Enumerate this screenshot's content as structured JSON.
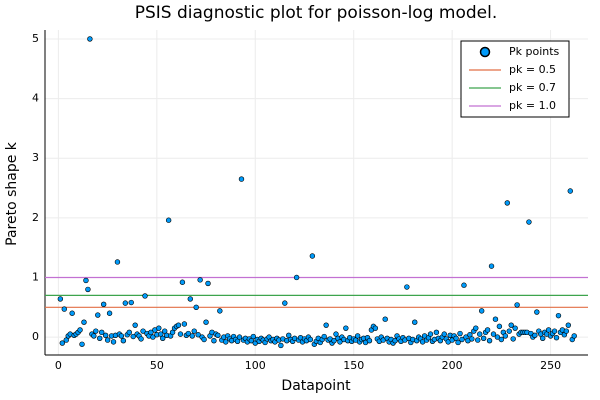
{
  "chart_data": {
    "type": "scatter",
    "title": "PSIS diagnostic plot for poisson-log model.",
    "x_label": "Datapoint",
    "y_label": "Pareto shape k",
    "xlim": [
      -6.8,
      269
    ],
    "ylim": [
      -0.3,
      5.15
    ],
    "xticks": [
      0,
      50,
      100,
      150,
      200,
      250
    ],
    "yticks": [
      0,
      1,
      2,
      3,
      4,
      5
    ],
    "grid": true,
    "legend_position": "top-right",
    "x": [
      1,
      2,
      3,
      4,
      5,
      6,
      7,
      8,
      9,
      10,
      11,
      12,
      13,
      14,
      15,
      16,
      17,
      18,
      19,
      20,
      21,
      22,
      23,
      24,
      25,
      26,
      27,
      28,
      29,
      30,
      31,
      32,
      33,
      34,
      35,
      36,
      37,
      38,
      39,
      40,
      41,
      42,
      43,
      44,
      45,
      46,
      47,
      48,
      49,
      50,
      51,
      52,
      53,
      54,
      55,
      56,
      57,
      58,
      59,
      60,
      61,
      62,
      63,
      64,
      65,
      66,
      67,
      68,
      69,
      70,
      71,
      72,
      73,
      74,
      75,
      76,
      77,
      78,
      79,
      80,
      81,
      82,
      83,
      84,
      85,
      86,
      87,
      88,
      89,
      90,
      91,
      92,
      93,
      94,
      95,
      96,
      97,
      98,
      99,
      100,
      101,
      102,
      103,
      104,
      105,
      106,
      107,
      108,
      109,
      110,
      111,
      112,
      113,
      114,
      115,
      116,
      117,
      118,
      119,
      120,
      121,
      122,
      123,
      124,
      125,
      126,
      127,
      128,
      129,
      130,
      131,
      132,
      133,
      134,
      135,
      136,
      137,
      138,
      139,
      140,
      141,
      142,
      143,
      144,
      145,
      146,
      147,
      148,
      149,
      150,
      151,
      152,
      153,
      154,
      155,
      156,
      157,
      158,
      159,
      160,
      161,
      162,
      163,
      164,
      165,
      166,
      167,
      168,
      169,
      170,
      171,
      172,
      173,
      174,
      175,
      176,
      177,
      178,
      179,
      180,
      181,
      182,
      183,
      184,
      185,
      186,
      187,
      188,
      189,
      190,
      191,
      192,
      193,
      194,
      195,
      196,
      197,
      198,
      199,
      200,
      201,
      202,
      203,
      204,
      205,
      206,
      207,
      208,
      209,
      210,
      211,
      212,
      213,
      214,
      215,
      216,
      217,
      218,
      219,
      220,
      221,
      222,
      223,
      224,
      225,
      226,
      227,
      228,
      229,
      230,
      231,
      232,
      233,
      234,
      235,
      236,
      237,
      238,
      239,
      240,
      241,
      242,
      243,
      244,
      245,
      246,
      247,
      248,
      249,
      250,
      251,
      252,
      253,
      254,
      255,
      256,
      257,
      258,
      259,
      260,
      261,
      262
    ],
    "series": [
      {
        "name": "Pk points",
        "color": "#009af9",
        "values": [
          0.64,
          -0.1,
          0.47,
          -0.05,
          0.02,
          0.05,
          0.4,
          0.03,
          0.05,
          0.08,
          0.12,
          -0.12,
          0.25,
          0.95,
          0.8,
          5.0,
          0.05,
          0.02,
          0.1,
          0.37,
          -0.02,
          0.08,
          0.55,
          0.03,
          -0.05,
          0.4,
          0.02,
          -0.08,
          0.03,
          1.26,
          0.05,
          0.02,
          -0.06,
          0.57,
          0.04,
          0.08,
          0.58,
          0.01,
          0.2,
          0.05,
          0.02,
          -0.03,
          0.1,
          0.69,
          0.06,
          0.02,
          0.08,
          0.0,
          0.12,
          0.04,
          0.15,
          0.05,
          -0.02,
          0.1,
          0.03,
          1.96,
          0.02,
          0.08,
          0.15,
          0.18,
          0.2,
          0.05,
          0.92,
          0.22,
          0.03,
          0.06,
          0.64,
          0.02,
          0.1,
          0.5,
          0.04,
          0.96,
          0.0,
          -0.04,
          0.25,
          0.9,
          0.02,
          0.08,
          -0.06,
          0.05,
          0.03,
          0.44,
          -0.05,
          0.0,
          -0.08,
          0.02,
          -0.03,
          -0.06,
          0.01,
          -0.04,
          -0.07,
          0.0,
          2.65,
          -0.05,
          -0.02,
          -0.08,
          -0.03,
          -0.06,
          0.01,
          -0.1,
          -0.04,
          -0.07,
          -0.02,
          -0.05,
          -0.09,
          -0.03,
          0.0,
          -0.06,
          -0.04,
          -0.08,
          -0.02,
          -0.05,
          -0.14,
          -0.03,
          0.57,
          -0.06,
          0.03,
          -0.04,
          -0.07,
          -0.02,
          1.0,
          -0.05,
          -0.01,
          -0.08,
          -0.03,
          -0.06,
          0.0,
          -0.04,
          1.36,
          -0.12,
          -0.07,
          -0.02,
          -0.09,
          -0.04,
          0.01,
          0.2,
          -0.05,
          -0.03,
          -0.1,
          -0.06,
          0.05,
          -0.02,
          -0.08,
          0.0,
          -0.04,
          0.15,
          -0.06,
          -0.01,
          -0.07,
          -0.03,
          -0.05,
          0.02,
          -0.08,
          -0.04,
          -0.02,
          -0.09,
          -0.01,
          -0.06,
          0.12,
          0.18,
          0.15,
          -0.03,
          -0.07,
          0.0,
          -0.05,
          0.3,
          -0.02,
          -0.08,
          -0.04,
          -0.1,
          -0.06,
          0.02,
          -0.03,
          -0.07,
          -0.01,
          -0.05,
          0.84,
          -0.02,
          -0.09,
          -0.04,
          0.25,
          -0.06,
          0.0,
          -0.03,
          -0.08,
          0.02,
          -0.05,
          -0.01,
          0.05,
          -0.07,
          -0.04,
          0.08,
          -0.02,
          -0.06,
          0.0,
          0.05,
          -0.03,
          -0.08,
          0.03,
          -0.05,
          0.02,
          -0.02,
          -0.09,
          0.06,
          -0.04,
          0.87,
          0.0,
          -0.06,
          0.04,
          -0.03,
          0.1,
          0.15,
          -0.05,
          0.05,
          0.44,
          -0.02,
          0.08,
          0.12,
          -0.06,
          1.19,
          0.05,
          0.3,
          0.0,
          0.18,
          -0.04,
          0.08,
          0.02,
          2.25,
          0.1,
          0.2,
          -0.03,
          0.15,
          0.54,
          0.05,
          0.08,
          0.08,
          0.08,
          0.08,
          1.93,
          0.06,
          0.0,
          0.03,
          0.42,
          0.1,
          0.05,
          -0.02,
          0.08,
          0.05,
          0.12,
          0.02,
          0.06,
          0.1,
          -0.01,
          0.36,
          0.08,
          0.12,
          0.04,
          0.1,
          0.2,
          2.45,
          -0.04,
          0.02
        ]
      }
    ],
    "hlines": [
      {
        "name": "pk = 0.5",
        "value": 0.5,
        "color": "#e26f46"
      },
      {
        "name": "pk = 0.7",
        "value": 0.7,
        "color": "#3da44d"
      },
      {
        "name": "pk = 1.0",
        "value": 1.0,
        "color": "#c271d2"
      }
    ]
  }
}
